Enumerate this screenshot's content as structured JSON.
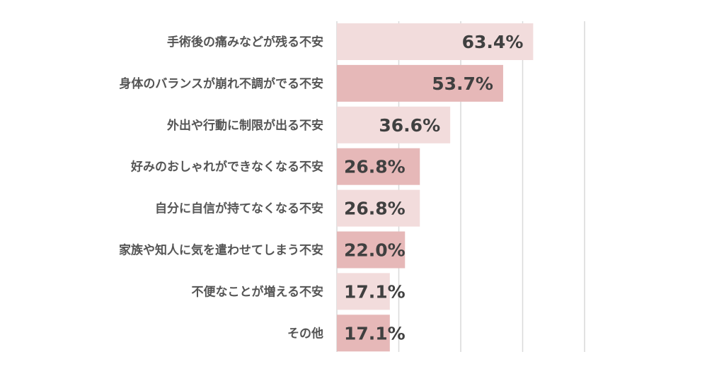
{
  "chart_data": {
    "type": "bar",
    "orientation": "horizontal",
    "categories": [
      "手術後の痛みなどが残る不安",
      "身体のバランスが崩れ不調がでる不安",
      "外出や行動に制限が出る不安",
      "好みのおしゃれができなくなる不安",
      "自分に自信が持てなくなる不安",
      "家族や知人に気を遣わせてしまう不安",
      "不便なことが増える不安",
      "その他"
    ],
    "values": [
      63.4,
      53.7,
      36.6,
      26.8,
      26.8,
      22.0,
      17.1,
      17.1
    ],
    "value_labels": [
      "63.4%",
      "53.7%",
      "36.6%",
      "26.8%",
      "26.8%",
      "22.0%",
      "17.1%",
      "17.1%"
    ],
    "xlim": [
      0,
      80
    ],
    "gridlines": [
      0,
      20,
      40,
      60,
      80
    ],
    "grid": true,
    "bar_colors": [
      "#f2dcdc",
      "#e6b8b8",
      "#f2dcdc",
      "#e6b8b8",
      "#f2dcdc",
      "#e6b8b8",
      "#f2dcdc",
      "#e6b8b8"
    ],
    "title": "",
    "xlabel": "",
    "ylabel": ""
  }
}
